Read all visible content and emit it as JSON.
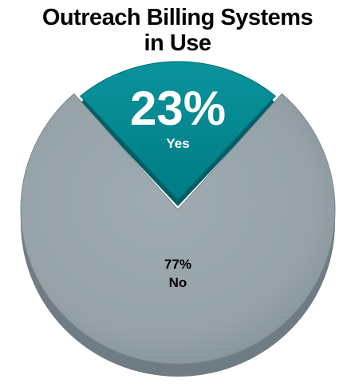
{
  "chart_data": {
    "type": "pie",
    "title": [
      "Outreach Billing Systems",
      "in Use"
    ],
    "slices": [
      {
        "label": "Yes",
        "value": 23,
        "value_label": "23%",
        "color": "#00858e",
        "exploded": true
      },
      {
        "label": "No",
        "value": 77,
        "value_label": "77%",
        "color": "#97a4aa",
        "exploded": false
      }
    ],
    "start_angle_deg": -41.4,
    "style": "3d",
    "legend": "none"
  }
}
